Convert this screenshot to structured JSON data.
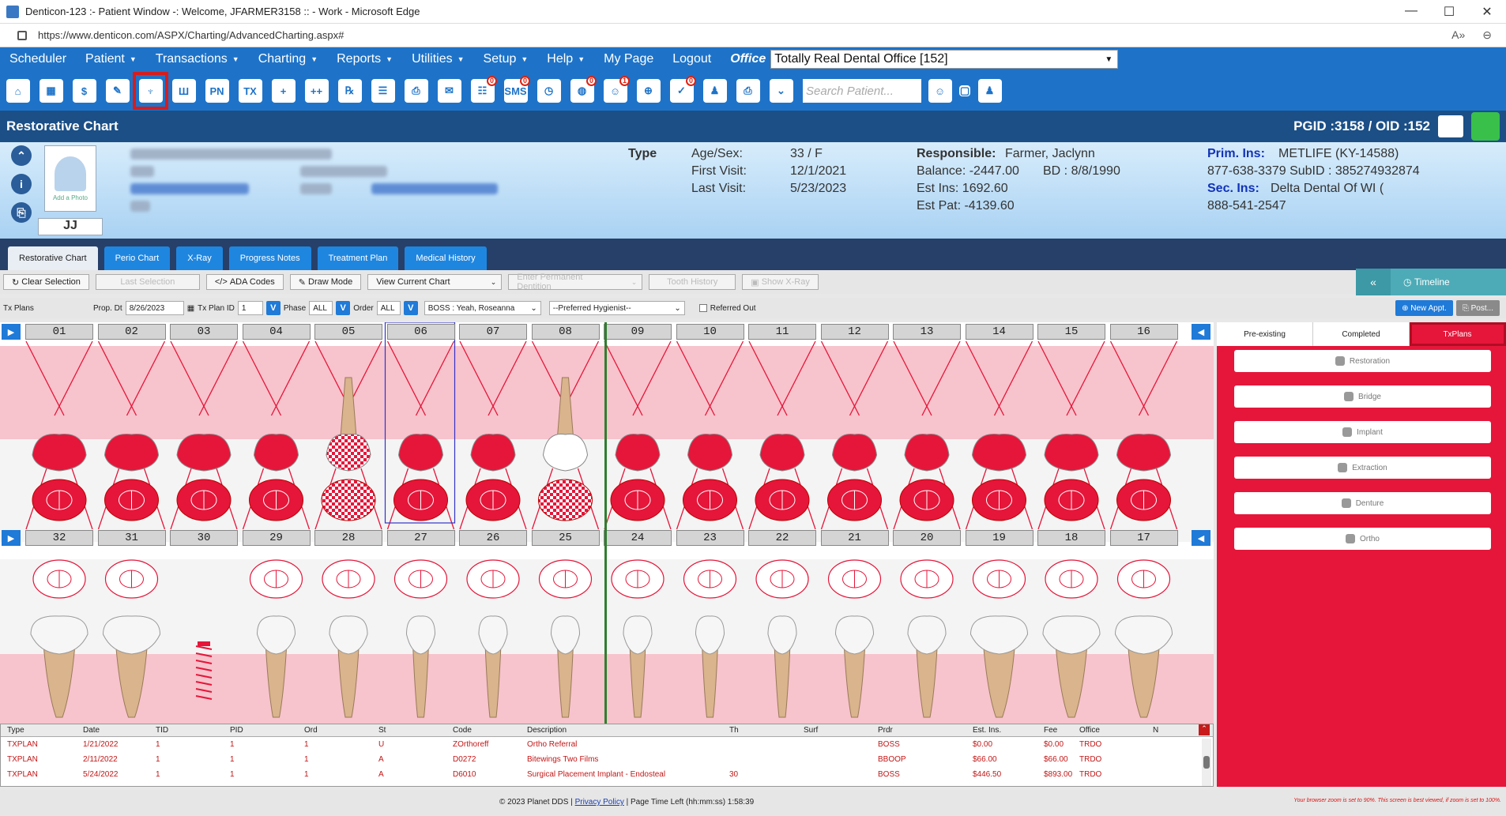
{
  "window": {
    "title": "Denticon-123 :- Patient Window -: Welcome, JFARMER3158 :: - Work - Microsoft Edge",
    "url": "https://www.denticon.com/ASPX/Charting/AdvancedCharting.aspx#",
    "controls": [
      "—",
      "☐",
      "✕"
    ]
  },
  "menu": {
    "items": [
      {
        "label": "Scheduler",
        "caret": false
      },
      {
        "label": "Patient",
        "caret": true
      },
      {
        "label": "Transactions",
        "caret": true
      },
      {
        "label": "Charting",
        "caret": true
      },
      {
        "label": "Reports",
        "caret": true
      },
      {
        "label": "Utilities",
        "caret": true
      },
      {
        "label": "Setup",
        "caret": true
      },
      {
        "label": "Help",
        "caret": true
      },
      {
        "label": "My Page",
        "caret": false
      },
      {
        "label": "Logout",
        "caret": false
      }
    ],
    "office_label": "Office",
    "office_value": "Totally Real Dental Office [152]"
  },
  "toolbar": {
    "icons": [
      {
        "name": "home-icon",
        "glyph": "⌂",
        "badge": ""
      },
      {
        "name": "calendar-icon",
        "glyph": "▦",
        "badge": ""
      },
      {
        "name": "dollar-icon",
        "glyph": "$",
        "badge": ""
      },
      {
        "name": "edit-icon",
        "glyph": "✎",
        "badge": ""
      },
      {
        "name": "tooth-chart-icon",
        "glyph": "♆",
        "badge": "",
        "selected": true
      },
      {
        "name": "perio-icon",
        "glyph": "Ш",
        "badge": ""
      },
      {
        "name": "progress-notes-icon",
        "glyph": "PN",
        "badge": ""
      },
      {
        "name": "treatment-icon",
        "glyph": "TX",
        "badge": ""
      },
      {
        "name": "add-patient-icon",
        "glyph": "+",
        "badge": ""
      },
      {
        "name": "add-family-icon",
        "glyph": "++",
        "badge": ""
      },
      {
        "name": "prescription-icon",
        "glyph": "℞",
        "badge": ""
      },
      {
        "name": "document-icon",
        "glyph": "☰",
        "badge": ""
      },
      {
        "name": "print-doc-icon",
        "glyph": "⎙",
        "badge": ""
      },
      {
        "name": "mail-icon",
        "glyph": "✉",
        "badge": ""
      },
      {
        "name": "chat-icon",
        "glyph": "☷",
        "badge": "0"
      },
      {
        "name": "sms-icon",
        "glyph": "SMS",
        "badge": "0"
      },
      {
        "name": "clock-icon",
        "glyph": "◷",
        "badge": ""
      },
      {
        "name": "globe-icon",
        "glyph": "◍",
        "badge": "0"
      },
      {
        "name": "support-icon",
        "glyph": "☺",
        "badge": "1"
      },
      {
        "name": "web-icon",
        "glyph": "⊕",
        "badge": ""
      },
      {
        "name": "clipboard-icon",
        "glyph": "✓",
        "badge": "0"
      },
      {
        "name": "family-icon",
        "glyph": "♟",
        "badge": ""
      },
      {
        "name": "printer-icon",
        "glyph": "⎙",
        "badge": ""
      },
      {
        "name": "chevron-down-icon",
        "glyph": "⌄",
        "badge": ""
      }
    ],
    "search_placeholder": "Search Patient..."
  },
  "chart_header": {
    "title": "Restorative Chart",
    "ids": "PGID :3158  /  OID :152"
  },
  "patient": {
    "photo_label": "Add a Photo",
    "initials": "JJ",
    "type_label": "Type",
    "age_sex_label": "Age/Sex:",
    "age_sex": "33 / F",
    "first_visit_label": "First Visit:",
    "first_visit": "12/1/2021",
    "last_visit_label": "Last Visit:",
    "last_visit": "5/23/2023",
    "responsible_label": "Responsible:",
    "responsible": "Farmer, Jaclynn",
    "balance": "Balance: -2447.00",
    "bd": "BD : 8/8/1990",
    "est_ins": "Est Ins:  1692.60",
    "est_pat": "Est Pat: -4139.60",
    "prim_ins_label": "Prim. Ins:",
    "prim_ins": "METLIFE (KY-14588)",
    "prim_ins_phone": "877-638-3379 SubID : 385274932874",
    "sec_ins_label": "Sec. Ins:",
    "sec_ins": "Delta Dental Of WI (",
    "sec_ins_phone": "888-541-2547"
  },
  "tabs": [
    "Restorative Chart",
    "Perio Chart",
    "X-Ray",
    "Progress Notes",
    "Treatment Plan",
    "Medical History"
  ],
  "actions": {
    "clear_selection": "Clear Selection",
    "last_selection": "Last Selection",
    "ada_codes": "ADA Codes",
    "draw_mode": "Draw Mode",
    "view_chart": "View Current Chart",
    "dentition": "Enter Permanent Dentition",
    "tooth_history": "Tooth History",
    "show_xray": "Show X-Ray",
    "timeline": "Timeline"
  },
  "txplans": {
    "label": "Tx Plans",
    "prop_dt_label": "Prop. Dt",
    "prop_dt": "8/26/2023",
    "tx_plan_id_label": "Tx Plan ID",
    "tx_plan_id": "1",
    "phase_label": "Phase",
    "phase": "ALL",
    "order_label": "Order",
    "order": "ALL",
    "provider": "BOSS : Yeah, Roseanna",
    "hygienist": "--Preferred Hygienist--",
    "referred_out": "Referred Out",
    "new_appt": "New Appt.",
    "post": "Post..."
  },
  "upper_teeth": [
    "01",
    "02",
    "03",
    "04",
    "05",
    "06",
    "07",
    "08",
    "09",
    "10",
    "11",
    "12",
    "13",
    "14",
    "15",
    "16"
  ],
  "lower_teeth": [
    "32",
    "31",
    "30",
    "29",
    "28",
    "27",
    "26",
    "25",
    "24",
    "23",
    "22",
    "21",
    "20",
    "19",
    "18",
    "17"
  ],
  "right_panel": {
    "tabs": [
      "Pre-existing",
      "Completed",
      "TxPlans"
    ],
    "buttons": [
      "Restoration",
      "Bridge",
      "Implant",
      "Extraction",
      "Denture",
      "Ortho"
    ]
  },
  "grid": {
    "headers": [
      "Type",
      "Date",
      "TID",
      "PID",
      "Ord",
      "St",
      "Code",
      "Description",
      "Th",
      "Surf",
      "Prdr",
      "Est. Ins.",
      "Fee",
      "Office",
      "N"
    ],
    "rows": [
      [
        "TXPLAN",
        "1/21/2022",
        "1",
        "1",
        "1",
        "U",
        "ZOrthoreff",
        "Ortho Referral",
        "",
        "",
        "BOSS",
        "$0.00",
        "$0.00",
        "TRDO"
      ],
      [
        "TXPLAN",
        "2/11/2022",
        "1",
        "1",
        "1",
        "A",
        "D0272",
        "Bitewings Two Films",
        "",
        "",
        "BBOOP",
        "$66.00",
        "$66.00",
        "TRDO"
      ],
      [
        "TXPLAN",
        "5/24/2022",
        "1",
        "1",
        "1",
        "A",
        "D6010",
        "Surgical Placement Implant - Endosteal",
        "30",
        "",
        "BOSS",
        "$446.50",
        "$893.00",
        "TRDO"
      ]
    ]
  },
  "footer": {
    "copyright": "© 2023 Planet DDS | ",
    "privacy": "Privacy Policy",
    "time_left": " | Page Time Left (hh:mm:ss) 1:58:39",
    "warning": "Your browser zoom is set to 90%. This screen is best viewed, if zoom is set to 100%."
  },
  "colors": {
    "accent": "#1e73c8",
    "txplan": "#e5163a",
    "gum": "#f7c3cc"
  }
}
